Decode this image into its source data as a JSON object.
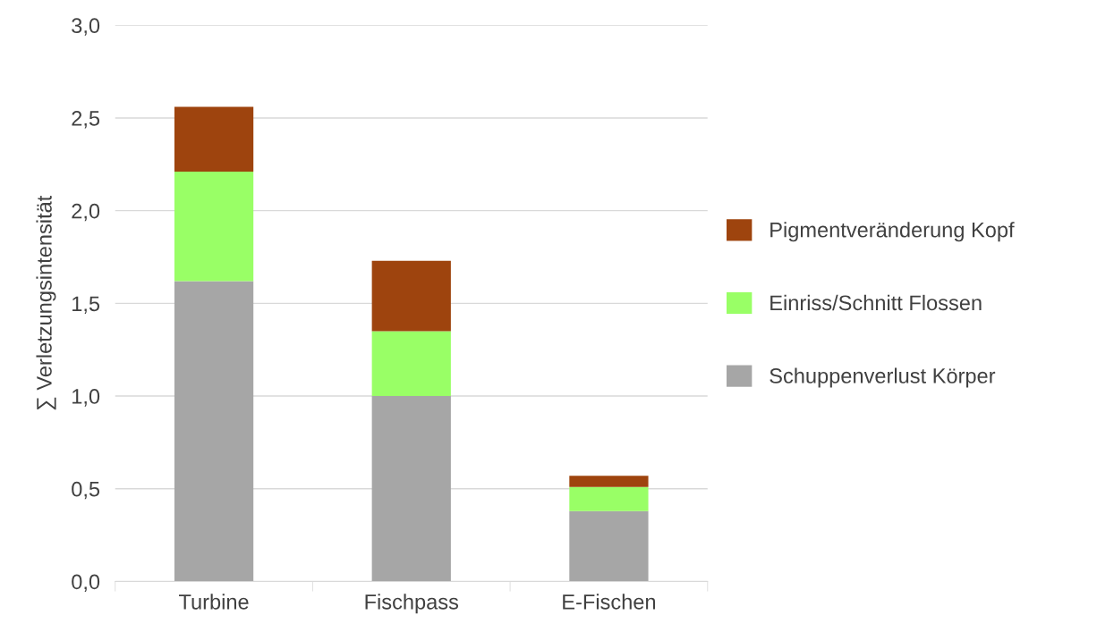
{
  "chart_data": {
    "type": "bar",
    "stacked": true,
    "ylabel": "∑ Verletzungsintensität",
    "categories": [
      "Turbine",
      "Fischpass",
      "E-Fischen"
    ],
    "series": [
      {
        "name": "Schuppenverlust Körper",
        "color": "#a6a6a6",
        "values": [
          1.62,
          1.0,
          0.38
        ]
      },
      {
        "name": "Einriss/Schnitt Flossen",
        "color": "#99ff66",
        "values": [
          0.59,
          0.35,
          0.13
        ]
      },
      {
        "name": "Pigmentveränderung Kopf",
        "color": "#9e440e",
        "values": [
          0.35,
          0.38,
          0.06
        ]
      }
    ],
    "ylim": [
      0,
      3
    ],
    "yticks": [
      {
        "value": 0,
        "label": "0,0"
      },
      {
        "value": 0.5,
        "label": "0,5"
      },
      {
        "value": 1,
        "label": "1,0"
      },
      {
        "value": 1.5,
        "label": "1,5"
      },
      {
        "value": 2,
        "label": "2,0"
      },
      {
        "value": 2.5,
        "label": "2,5"
      },
      {
        "value": 3,
        "label": "3,0"
      }
    ],
    "grid": "y",
    "legend": "right"
  }
}
